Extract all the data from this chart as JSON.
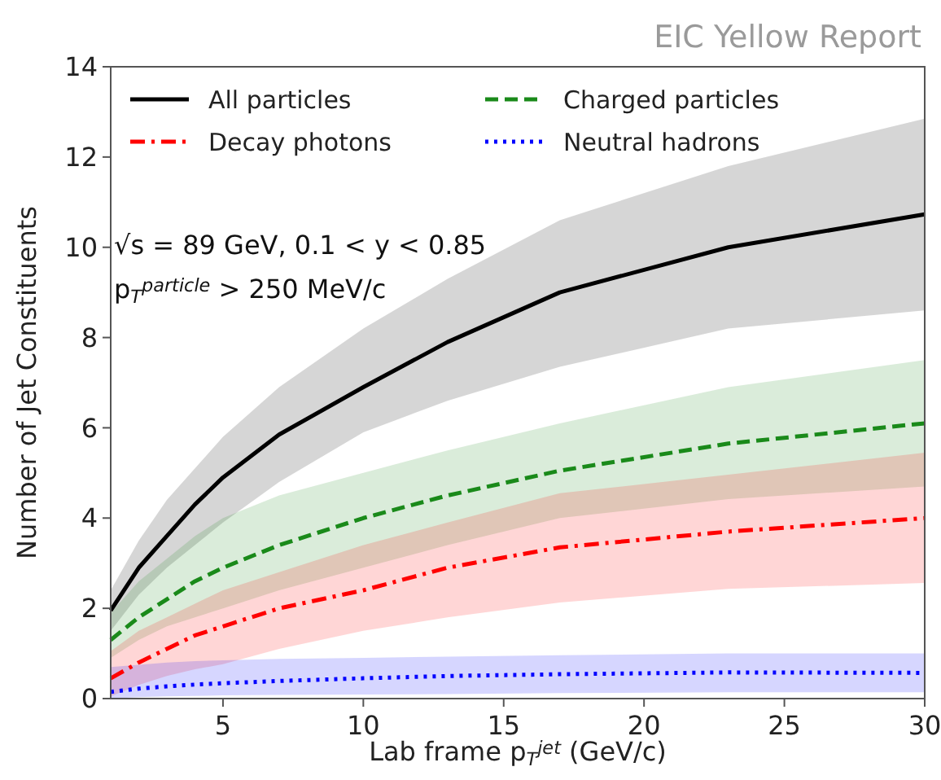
{
  "chart_data": {
    "type": "line",
    "xlabel": "Lab frame p$_{T}$$^{jet}$ (GeV/c)",
    "ylabel": "Number of Jet Constituents",
    "x": [
      1,
      2,
      3,
      4,
      5,
      7,
      10,
      13,
      17,
      23,
      30
    ],
    "xlim": [
      1,
      30
    ],
    "xticks": [
      5,
      10,
      15,
      20,
      25,
      30
    ],
    "ylim": [
      0,
      14
    ],
    "yticks": [
      0,
      2,
      4,
      6,
      8,
      10,
      12,
      14
    ],
    "grid": false,
    "legend": "top",
    "annotations": [
      "EIC Yellow Report",
      "√s = 89 GeV, 0.1 < y < 0.85",
      "p$_{T}$$^{particle}$ > 250 MeV/c"
    ],
    "series": [
      {
        "name": "All particles",
        "color": "#000000",
        "line_style": "solid",
        "values": [
          1.95,
          2.9,
          3.6,
          4.3,
          4.9,
          5.85,
          6.9,
          7.9,
          9.0,
          10.0,
          10.73
        ],
        "upper": [
          2.4,
          3.5,
          4.4,
          5.1,
          5.8,
          6.9,
          8.2,
          9.3,
          10.6,
          11.8,
          12.85
        ],
        "lower": [
          1.5,
          2.3,
          2.9,
          3.4,
          3.9,
          4.8,
          5.9,
          6.6,
          7.35,
          8.2,
          8.6
        ]
      },
      {
        "name": "Charged particles",
        "color": "#1a8a1a",
        "line_style": "dashed",
        "values": [
          1.3,
          1.8,
          2.2,
          2.6,
          2.9,
          3.4,
          4.0,
          4.5,
          5.05,
          5.65,
          6.1
        ],
        "upper": [
          1.9,
          2.6,
          3.1,
          3.6,
          4.0,
          4.5,
          5.0,
          5.5,
          6.1,
          6.9,
          7.5
        ],
        "lower": [
          0.9,
          1.3,
          1.6,
          1.8,
          2.0,
          2.4,
          2.9,
          3.4,
          4.0,
          4.42,
          4.7
        ]
      },
      {
        "name": "Decay photons",
        "color": "#ff0000",
        "line_style": "dashdot",
        "values": [
          0.45,
          0.8,
          1.1,
          1.4,
          1.6,
          2.0,
          2.4,
          2.9,
          3.35,
          3.7,
          4.0
        ],
        "upper": [
          1.05,
          1.5,
          1.8,
          2.1,
          2.4,
          2.8,
          3.4,
          3.9,
          4.55,
          4.96,
          5.45
        ],
        "lower": [
          0.05,
          0.3,
          0.5,
          0.65,
          0.76,
          1.1,
          1.5,
          1.8,
          2.13,
          2.43,
          2.56
        ]
      },
      {
        "name": "Neutral hadrons",
        "color": "#0000ff",
        "line_style": "dotted",
        "values": [
          0.15,
          0.22,
          0.27,
          0.31,
          0.34,
          0.39,
          0.45,
          0.5,
          0.54,
          0.58,
          0.57
        ],
        "upper": [
          0.7,
          0.75,
          0.8,
          0.83,
          0.85,
          0.88,
          0.9,
          0.93,
          0.96,
          1.0,
          1.0
        ],
        "lower": [
          0,
          0.03,
          0.05,
          0.06,
          0.07,
          0.08,
          0.09,
          0.1,
          0.12,
          0.14,
          0.14
        ]
      }
    ]
  }
}
